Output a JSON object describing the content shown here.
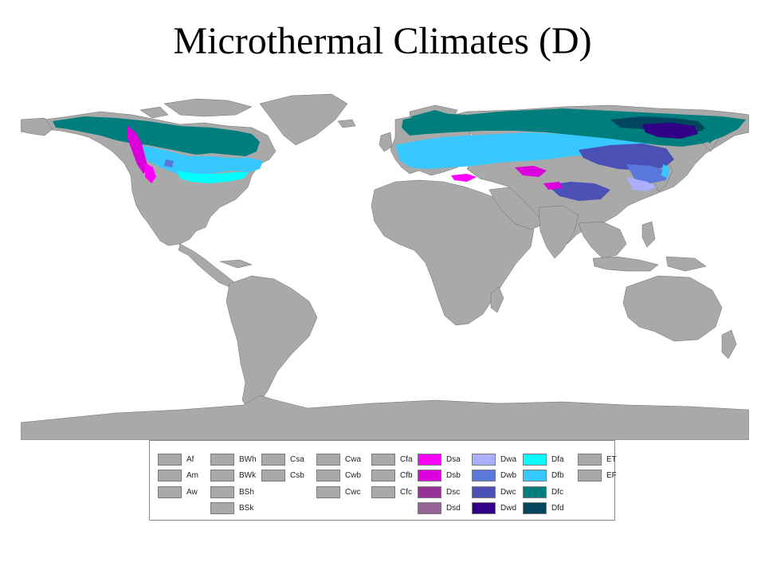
{
  "title": "Microthermal Climates (D)",
  "colors": {
    "ocean": "#ffffff",
    "land": "#a9a9a9",
    "border": "#6e6e6e",
    "Dsa": "#ff00ff",
    "Dsb": "#dc00dc",
    "Dsc": "#963296",
    "Dsd": "#966496",
    "Dwa": "#aaafff",
    "Dwb": "#5a78dc",
    "Dwc": "#4b50b4",
    "Dwd": "#320087",
    "Dfa": "#00ffff",
    "Dfb": "#37c8ff",
    "Dfc": "#007d7d",
    "Dfd": "#00465f",
    "other": "#a9a9a9"
  },
  "legend": {
    "columns": [
      [
        "Af",
        "Am",
        "Aw"
      ],
      [
        "BWh",
        "BWk",
        "BSh",
        "BSk"
      ],
      [
        "Csa",
        "Csb"
      ],
      [
        "Cwa",
        "Cwb",
        "Cwc"
      ],
      [
        "Cfa",
        "Cfb",
        "Cfc"
      ],
      [
        "Dsa",
        "Dsb",
        "Dsc",
        "Dsd"
      ],
      [
        "Dwa",
        "Dwb",
        "Dwc",
        "Dwd"
      ],
      [
        "Dfa",
        "Dfb",
        "Dfc",
        "Dfd"
      ],
      [
        "ET",
        "EF"
      ]
    ]
  }
}
